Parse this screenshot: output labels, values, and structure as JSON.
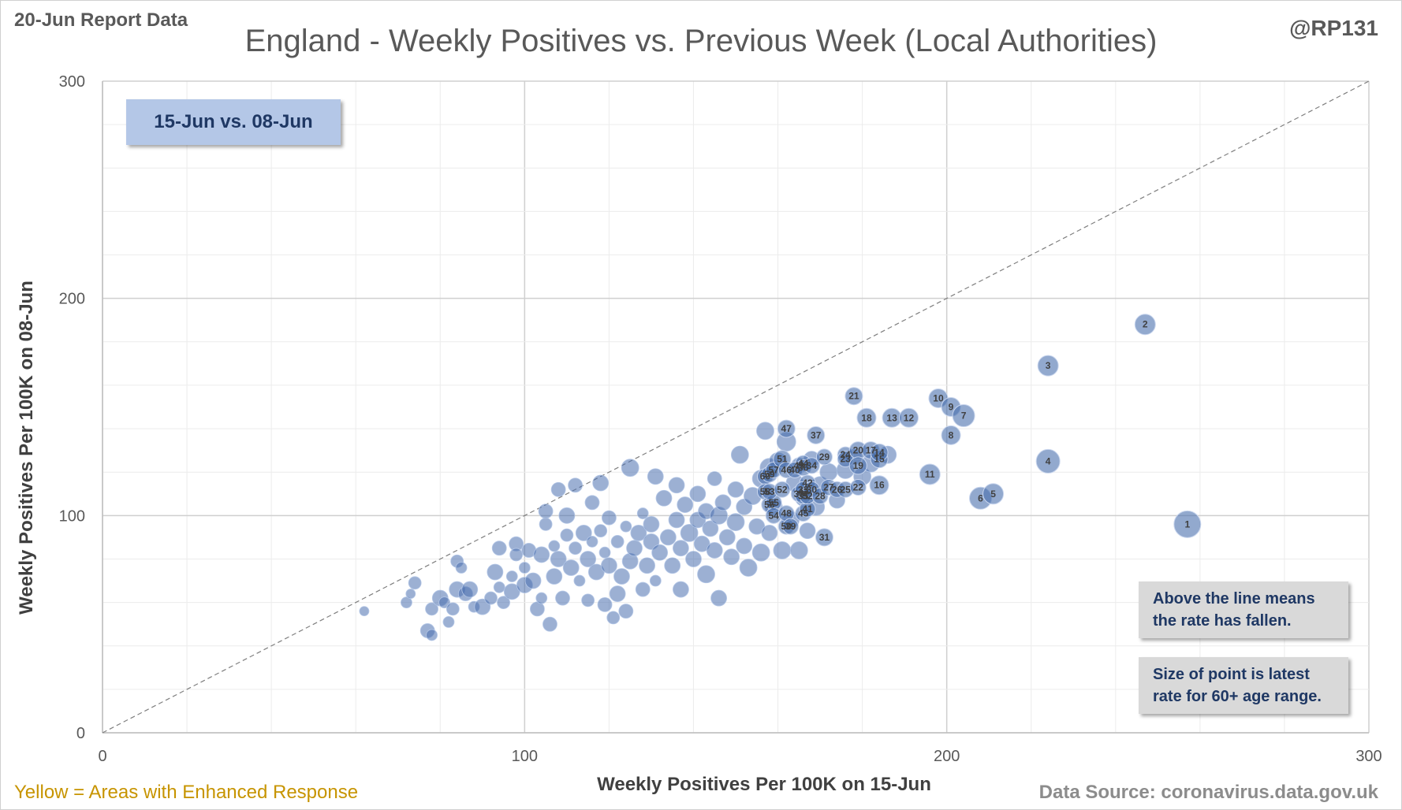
{
  "header": {
    "report_date": "20-Jun Report Data",
    "handle": "@RP131",
    "title": "England - Weekly Positives vs. Previous Week (Local Authorities)"
  },
  "annotations": {
    "period_box": "15-Jun vs. 08-Jun",
    "note_above": "Above the line means the rate has fallen.",
    "note_above_line1": "Above the line means",
    "note_above_line2": "the rate has fallen.",
    "note_size_line1": "Size of point is latest",
    "note_size_line2": "rate for 60+ age range."
  },
  "footer": {
    "legend_yellow": "Yellow = Areas with Enhanced  Response",
    "source": "Data Source: coronavirus.data.gov.uk"
  },
  "colors": {
    "bubble": "#4a6fae",
    "bubble_dark": "#2f5597",
    "gridline": "#d9d9d9",
    "note_bg": "#d9d9d9",
    "period_bg": "#b4c7e7",
    "label_text": "#1f3864",
    "yellow_text": "#c79400"
  },
  "chart_data": {
    "type": "scatter",
    "subtype": "bubble",
    "title": "England - Weekly Positives vs. Previous Week (Local Authorities)",
    "xlabel": "Weekly Positives Per 100K on 15-Jun",
    "ylabel": "Weekly Positives Per 100K on 08-Jun",
    "xlim": [
      0,
      300
    ],
    "ylim": [
      0,
      300
    ],
    "x_ticks": [
      0,
      100,
      200,
      300
    ],
    "y_ticks": [
      0,
      100,
      200,
      300
    ],
    "minor_grid_step": 20,
    "reference_line": "y = x (dashed)",
    "labeled_points": [
      {
        "label": "1",
        "x": 257,
        "y": 96,
        "size": 34
      },
      {
        "label": "2",
        "x": 247,
        "y": 188,
        "size": 26
      },
      {
        "label": "3",
        "x": 224,
        "y": 169,
        "size": 26
      },
      {
        "label": "4",
        "x": 224,
        "y": 125,
        "size": 30
      },
      {
        "label": "5",
        "x": 211,
        "y": 110,
        "size": 26
      },
      {
        "label": "6",
        "x": 208,
        "y": 108,
        "size": 28
      },
      {
        "label": "7",
        "x": 204,
        "y": 146,
        "size": 28
      },
      {
        "label": "8",
        "x": 201,
        "y": 137,
        "size": 24
      },
      {
        "label": "9",
        "x": 201,
        "y": 150,
        "size": 24
      },
      {
        "label": "10",
        "x": 198,
        "y": 154,
        "size": 24
      },
      {
        "label": "11",
        "x": 196,
        "y": 119,
        "size": 26
      },
      {
        "label": "12",
        "x": 191,
        "y": 145,
        "size": 24
      },
      {
        "label": "13",
        "x": 187,
        "y": 145,
        "size": 24
      },
      {
        "label": "14",
        "x": 184,
        "y": 129,
        "size": 22
      },
      {
        "label": "15",
        "x": 184,
        "y": 126,
        "size": 22
      },
      {
        "label": "16",
        "x": 184,
        "y": 114,
        "size": 24
      },
      {
        "label": "17",
        "x": 182,
        "y": 130,
        "size": 22
      },
      {
        "label": "18",
        "x": 181,
        "y": 145,
        "size": 24
      },
      {
        "label": "19",
        "x": 179,
        "y": 123,
        "size": 22
      },
      {
        "label": "20",
        "x": 179,
        "y": 130,
        "size": 22
      },
      {
        "label": "21",
        "x": 178,
        "y": 155,
        "size": 22
      },
      {
        "label": "22",
        "x": 179,
        "y": 113,
        "size": 20
      },
      {
        "label": "23",
        "x": 176,
        "y": 126,
        "size": 20
      },
      {
        "label": "24",
        "x": 176,
        "y": 128,
        "size": 20
      },
      {
        "label": "25",
        "x": 176,
        "y": 112,
        "size": 20
      },
      {
        "label": "26",
        "x": 174,
        "y": 112,
        "size": 20
      },
      {
        "label": "27",
        "x": 172,
        "y": 113,
        "size": 20
      },
      {
        "label": "28",
        "x": 170,
        "y": 109,
        "size": 20
      },
      {
        "label": "29",
        "x": 171,
        "y": 127,
        "size": 20
      },
      {
        "label": "30",
        "x": 168,
        "y": 112,
        "size": 20
      },
      {
        "label": "31",
        "x": 171,
        "y": 90,
        "size": 22
      },
      {
        "label": "32",
        "x": 167,
        "y": 109,
        "size": 20
      },
      {
        "label": "33",
        "x": 166,
        "y": 112,
        "size": 20
      },
      {
        "label": "34",
        "x": 168,
        "y": 123,
        "size": 20
      },
      {
        "label": "35",
        "x": 166,
        "y": 109,
        "size": 20
      },
      {
        "label": "36",
        "x": 166,
        "y": 122,
        "size": 20
      },
      {
        "label": "37",
        "x": 169,
        "y": 137,
        "size": 22
      },
      {
        "label": "38",
        "x": 165,
        "y": 110,
        "size": 20
      },
      {
        "label": "39",
        "x": 163,
        "y": 95,
        "size": 20
      },
      {
        "label": "40",
        "x": 164,
        "y": 121,
        "size": 20
      },
      {
        "label": "41",
        "x": 167,
        "y": 103,
        "size": 20
      },
      {
        "label": "42",
        "x": 167,
        "y": 115,
        "size": 20
      },
      {
        "label": "43",
        "x": 166,
        "y": 111,
        "size": 20
      },
      {
        "label": "44",
        "x": 166,
        "y": 124,
        "size": 20
      },
      {
        "label": "45",
        "x": 166,
        "y": 101,
        "size": 20
      },
      {
        "label": "46",
        "x": 162,
        "y": 121,
        "size": 20
      },
      {
        "label": "47",
        "x": 162,
        "y": 140,
        "size": 22
      },
      {
        "label": "48",
        "x": 162,
        "y": 101,
        "size": 20
      },
      {
        "label": "49",
        "x": 165,
        "y": 123,
        "size": 20
      },
      {
        "label": "50",
        "x": 162,
        "y": 95,
        "size": 20
      },
      {
        "label": "51",
        "x": 161,
        "y": 126,
        "size": 22
      },
      {
        "label": "52",
        "x": 161,
        "y": 112,
        "size": 20
      },
      {
        "label": "53",
        "x": 158,
        "y": 111,
        "size": 20
      },
      {
        "label": "54",
        "x": 159,
        "y": 100,
        "size": 20
      },
      {
        "label": "55",
        "x": 159,
        "y": 106,
        "size": 20
      },
      {
        "label": "56",
        "x": 158,
        "y": 105,
        "size": 20
      },
      {
        "label": "57",
        "x": 159,
        "y": 121,
        "size": 20
      },
      {
        "label": "58",
        "x": 157,
        "y": 111,
        "size": 20
      },
      {
        "label": "59",
        "x": 158,
        "y": 119,
        "size": 20
      },
      {
        "label": "60",
        "x": 157,
        "y": 118,
        "size": 20
      }
    ],
    "unlabeled_points": [
      [
        62,
        56,
        12
      ],
      [
        72,
        60,
        14
      ],
      [
        73,
        64,
        12
      ],
      [
        74,
        69,
        16
      ],
      [
        77,
        47,
        18
      ],
      [
        78,
        45,
        14
      ],
      [
        78,
        57,
        16
      ],
      [
        80,
        62,
        20
      ],
      [
        81,
        60,
        14
      ],
      [
        82,
        51,
        14
      ],
      [
        83,
        57,
        16
      ],
      [
        84,
        66,
        20
      ],
      [
        84,
        79,
        16
      ],
      [
        85,
        76,
        14
      ],
      [
        86,
        64,
        18
      ],
      [
        87,
        66,
        20
      ],
      [
        88,
        58,
        14
      ],
      [
        90,
        58,
        20
      ],
      [
        92,
        62,
        16
      ],
      [
        93,
        74,
        20
      ],
      [
        94,
        67,
        14
      ],
      [
        94,
        85,
        18
      ],
      [
        95,
        60,
        16
      ],
      [
        97,
        72,
        14
      ],
      [
        97,
        65,
        20
      ],
      [
        98,
        87,
        18
      ],
      [
        98,
        82,
        16
      ],
      [
        100,
        68,
        20
      ],
      [
        100,
        76,
        14
      ],
      [
        101,
        84,
        18
      ],
      [
        102,
        70,
        20
      ],
      [
        103,
        57,
        18
      ],
      [
        104,
        62,
        14
      ],
      [
        104,
        82,
        20
      ],
      [
        105,
        96,
        16
      ],
      [
        105,
        102,
        18
      ],
      [
        106,
        50,
        18
      ],
      [
        107,
        72,
        20
      ],
      [
        107,
        86,
        14
      ],
      [
        108,
        112,
        18
      ],
      [
        108,
        80,
        20
      ],
      [
        109,
        62,
        18
      ],
      [
        110,
        91,
        16
      ],
      [
        110,
        100,
        20
      ],
      [
        111,
        76,
        20
      ],
      [
        112,
        114,
        18
      ],
      [
        112,
        85,
        16
      ],
      [
        113,
        70,
        14
      ],
      [
        114,
        92,
        20
      ],
      [
        115,
        80,
        20
      ],
      [
        115,
        61,
        16
      ],
      [
        116,
        88,
        14
      ],
      [
        116,
        106,
        18
      ],
      [
        117,
        74,
        20
      ],
      [
        118,
        115,
        20
      ],
      [
        118,
        93,
        16
      ],
      [
        119,
        59,
        18
      ],
      [
        119,
        83,
        14
      ],
      [
        120,
        77,
        20
      ],
      [
        120,
        99,
        18
      ],
      [
        121,
        53,
        16
      ],
      [
        122,
        64,
        20
      ],
      [
        122,
        88,
        16
      ],
      [
        123,
        72,
        20
      ],
      [
        124,
        56,
        18
      ],
      [
        124,
        95,
        14
      ],
      [
        125,
        122,
        22
      ],
      [
        125,
        79,
        20
      ],
      [
        126,
        85,
        20
      ],
      [
        127,
        92,
        20
      ],
      [
        128,
        66,
        18
      ],
      [
        128,
        101,
        14
      ],
      [
        129,
        77,
        20
      ],
      [
        130,
        88,
        20
      ],
      [
        130,
        96,
        20
      ],
      [
        131,
        118,
        20
      ],
      [
        131,
        70,
        14
      ],
      [
        132,
        83,
        20
      ],
      [
        133,
        108,
        20
      ],
      [
        134,
        90,
        20
      ],
      [
        135,
        77,
        20
      ],
      [
        136,
        98,
        20
      ],
      [
        136,
        114,
        20
      ],
      [
        137,
        66,
        20
      ],
      [
        137,
        85,
        20
      ],
      [
        138,
        105,
        20
      ],
      [
        139,
        92,
        22
      ],
      [
        140,
        80,
        20
      ],
      [
        141,
        110,
        20
      ],
      [
        141,
        98,
        20
      ],
      [
        142,
        87,
        20
      ],
      [
        143,
        73,
        22
      ],
      [
        143,
        102,
        20
      ],
      [
        144,
        94,
        20
      ],
      [
        145,
        117,
        18
      ],
      [
        145,
        84,
        20
      ],
      [
        146,
        62,
        20
      ],
      [
        146,
        100,
        22
      ],
      [
        147,
        106,
        20
      ],
      [
        148,
        90,
        20
      ],
      [
        149,
        81,
        20
      ],
      [
        150,
        112,
        20
      ],
      [
        150,
        97,
        22
      ],
      [
        151,
        128,
        22
      ],
      [
        152,
        86,
        20
      ],
      [
        152,
        104,
        20
      ],
      [
        153,
        76,
        22
      ],
      [
        154,
        109,
        22
      ],
      [
        155,
        95,
        20
      ],
      [
        156,
        117,
        22
      ],
      [
        156,
        83,
        22
      ],
      [
        157,
        139,
        22
      ],
      [
        158,
        122,
        24
      ],
      [
        158,
        92,
        20
      ],
      [
        159,
        104,
        22
      ],
      [
        160,
        125,
        22
      ],
      [
        161,
        84,
        22
      ],
      [
        162,
        134,
        24
      ],
      [
        163,
        98,
        22
      ],
      [
        164,
        115,
        22
      ],
      [
        165,
        84,
        22
      ],
      [
        166,
        108,
        20
      ],
      [
        167,
        93,
        20
      ],
      [
        168,
        126,
        20
      ],
      [
        169,
        104,
        22
      ],
      [
        170,
        114,
        22
      ],
      [
        172,
        120,
        22
      ],
      [
        174,
        107,
        20
      ],
      [
        176,
        121,
        22
      ],
      [
        178,
        127,
        20
      ],
      [
        180,
        118,
        22
      ],
      [
        182,
        124,
        22
      ],
      [
        186,
        128,
        22
      ]
    ]
  }
}
